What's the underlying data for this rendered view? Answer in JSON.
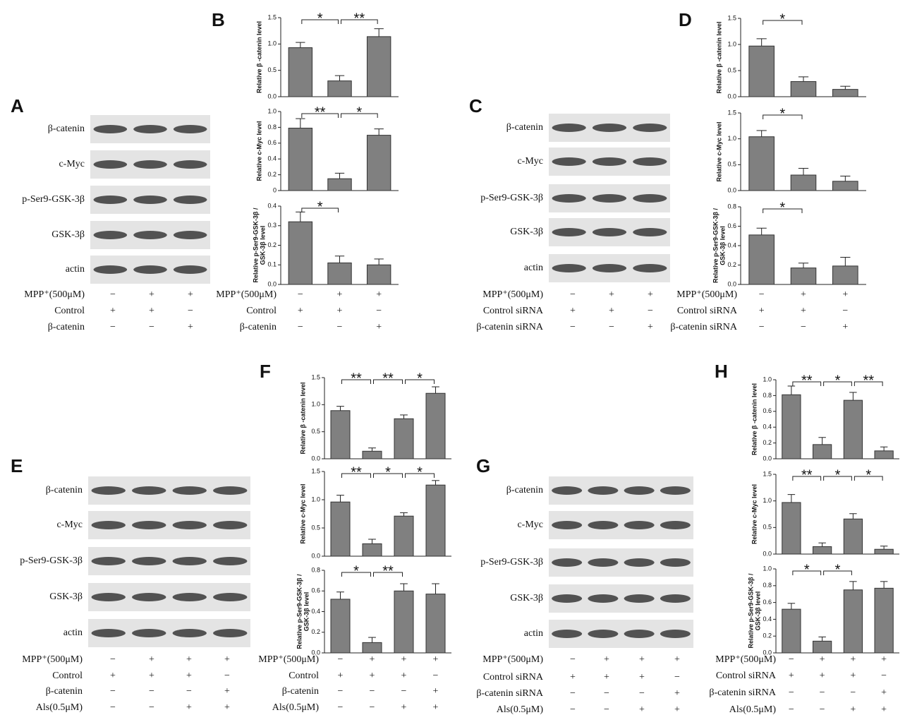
{
  "panels": [
    {
      "letter": "A",
      "blot_labels": [
        "β-catenin",
        "c-Myc",
        "p-Ser9-GSK-3β",
        "GSK-3β",
        "actin"
      ],
      "treatments": [
        {
          "label": "MPP⁺(500μM)",
          "signs": [
            "−",
            "+",
            "+"
          ]
        },
        {
          "label": "Control",
          "signs": [
            "+",
            "+",
            "−"
          ]
        },
        {
          "label": "β-catenin",
          "signs": [
            "−",
            "−",
            "+"
          ]
        }
      ]
    },
    {
      "letter": "B",
      "treatments": [
        {
          "label": "MPP⁺(500μM)",
          "signs": [
            "−",
            "+",
            "+"
          ]
        },
        {
          "label": "Control",
          "signs": [
            "+",
            "+",
            "−"
          ]
        },
        {
          "label": "β-catenin",
          "signs": [
            "−",
            "−",
            "+"
          ]
        }
      ]
    },
    {
      "letter": "C",
      "blot_labels": [
        "β-catenin",
        "c-Myc",
        "p-Ser9-GSK-3β",
        "GSK-3β",
        "actin"
      ],
      "treatments": [
        {
          "label": "MPP⁺(500μM)",
          "signs": [
            "−",
            "+",
            "+"
          ]
        },
        {
          "label": "Control siRNA",
          "signs": [
            "+",
            "+",
            "−"
          ]
        },
        {
          "label": "β-catenin siRNA",
          "signs": [
            "−",
            "−",
            "+"
          ]
        }
      ]
    },
    {
      "letter": "D",
      "treatments": [
        {
          "label": "MPP⁺(500μM)",
          "signs": [
            "−",
            "+",
            "+"
          ]
        },
        {
          "label": "Control siRNA",
          "signs": [
            "+",
            "+",
            "−"
          ]
        },
        {
          "label": "β-catenin siRNA",
          "signs": [
            "−",
            "−",
            "+"
          ]
        }
      ]
    },
    {
      "letter": "E",
      "blot_labels": [
        "β-catenin",
        "c-Myc",
        "p-Ser9-GSK-3β",
        "GSK-3β",
        "actin"
      ],
      "treatments": [
        {
          "label": "MPP⁺(500μM)",
          "signs": [
            "−",
            "+",
            "+",
            "+"
          ]
        },
        {
          "label": "Control",
          "signs": [
            "+",
            "+",
            "+",
            "−"
          ]
        },
        {
          "label": "β-catenin",
          "signs": [
            "−",
            "−",
            "−",
            "+"
          ]
        },
        {
          "label": "Als(0.5μM)",
          "signs": [
            "−",
            "−",
            "+",
            "+"
          ]
        }
      ]
    },
    {
      "letter": "F",
      "treatments": [
        {
          "label": "MPP⁺(500μM)",
          "signs": [
            "−",
            "+",
            "+",
            "+"
          ]
        },
        {
          "label": "Control",
          "signs": [
            "+",
            "+",
            "+",
            "−"
          ]
        },
        {
          "label": "β-catenin",
          "signs": [
            "−",
            "−",
            "−",
            "+"
          ]
        },
        {
          "label": "Als(0.5μM)",
          "signs": [
            "−",
            "−",
            "+",
            "+"
          ]
        }
      ]
    },
    {
      "letter": "G",
      "blot_labels": [
        "β-catenin",
        "c-Myc",
        "p-Ser9-GSK-3β",
        "GSK-3β",
        "actin"
      ],
      "treatments": [
        {
          "label": "MPP⁺(500μM)",
          "signs": [
            "−",
            "+",
            "+",
            "+"
          ]
        },
        {
          "label": "Control siRNA",
          "signs": [
            "+",
            "+",
            "+",
            "−"
          ]
        },
        {
          "label": "β-catenin siRNA",
          "signs": [
            "−",
            "−",
            "−",
            "+"
          ]
        },
        {
          "label": "Als(0.5μM)",
          "signs": [
            "−",
            "−",
            "+",
            "+"
          ]
        }
      ]
    },
    {
      "letter": "H",
      "treatments": [
        {
          "label": "MPP⁺(500μM)",
          "signs": [
            "−",
            "+",
            "+",
            "+"
          ]
        },
        {
          "label": "Control siRNA",
          "signs": [
            "+",
            "+",
            "+",
            "−"
          ]
        },
        {
          "label": "β-catenin siRNA",
          "signs": [
            "−",
            "−",
            "−",
            "+"
          ]
        },
        {
          "label": "Als(0.5μM)",
          "signs": [
            "−",
            "−",
            "+",
            "+"
          ]
        }
      ]
    }
  ],
  "chart_data": [
    {
      "type": "bar",
      "ylabel": [
        "Relative β -catenin level"
      ],
      "values": [
        0.93,
        0.3,
        1.14
      ],
      "errors": [
        0.1,
        0.1,
        0.15
      ],
      "color": "#808080",
      "ylim": [
        0,
        1.5
      ],
      "yticks": [
        {
          "value": 0,
          "label": "0.0"
        },
        0.5,
        {
          "value": 1,
          "label": "1.0"
        },
        1.5
      ],
      "annotations": [
        "*",
        "**"
      ]
    },
    {
      "type": "bar",
      "ylabel": [
        "Relative c-Myc level"
      ],
      "values": [
        0.79,
        0.15,
        0.7
      ],
      "errors": [
        0.12,
        0.07,
        0.08
      ],
      "color": "#808080",
      "ylim": [
        0,
        1.0
      ],
      "yticks": [
        0,
        0.2,
        0.4,
        0.6,
        0.8,
        {
          "value": 1,
          "label": "1.0"
        }
      ],
      "annotations": [
        "**",
        "*"
      ]
    },
    {
      "type": "bar",
      "ylabel": [
        "Relative p-Ser9-GSK-3β /",
        "GSK-3β level"
      ],
      "values": [
        0.32,
        0.11,
        0.1
      ],
      "errors": [
        0.05,
        0.035,
        0.03
      ],
      "color": "#808080",
      "ylim": [
        0,
        0.4
      ],
      "yticks": [
        {
          "value": 0,
          "label": "0.0"
        },
        0.1,
        0.2,
        0.3,
        0.4
      ],
      "annotations": [
        "*",
        null
      ]
    },
    {
      "type": "bar",
      "ylabel": [
        "Relative β -catenin level"
      ],
      "values": [
        0.97,
        0.29,
        0.14
      ],
      "errors": [
        0.14,
        0.09,
        0.06
      ],
      "color": "#808080",
      "ylim": [
        0,
        1.5
      ],
      "yticks": [
        {
          "value": 0,
          "label": "0.0"
        },
        0.5,
        {
          "value": 1,
          "label": "1.0"
        },
        1.5
      ],
      "annotations": [
        "*",
        null
      ]
    },
    {
      "type": "bar",
      "ylabel": [
        "Relative c-Myc level"
      ],
      "values": [
        1.04,
        0.3,
        0.18
      ],
      "errors": [
        0.12,
        0.13,
        0.1
      ],
      "color": "#808080",
      "ylim": [
        0,
        1.5
      ],
      "yticks": [
        {
          "value": 0,
          "label": "0.0"
        },
        0.5,
        {
          "value": 1,
          "label": "1.0"
        },
        1.5
      ],
      "annotations": [
        "*",
        null
      ]
    },
    {
      "type": "bar",
      "ylabel": [
        "Relative p-Ser9-GSK-3β /",
        "GSK-3β level"
      ],
      "values": [
        0.51,
        0.17,
        0.19
      ],
      "errors": [
        0.07,
        0.05,
        0.09
      ],
      "color": "#808080",
      "ylim": [
        0,
        0.8
      ],
      "yticks": [
        {
          "value": 0,
          "label": "0.0"
        },
        0.2,
        0.4,
        0.6,
        0.8
      ],
      "annotations": [
        "*",
        null
      ]
    },
    {
      "type": "bar",
      "ylabel": [
        "Relative β -catenin level"
      ],
      "values": [
        0.89,
        0.14,
        0.74,
        1.21
      ],
      "errors": [
        0.08,
        0.06,
        0.07,
        0.12
      ],
      "color": "#808080",
      "ylim": [
        0,
        1.5
      ],
      "yticks": [
        {
          "value": 0,
          "label": "0.0"
        },
        0.5,
        {
          "value": 1,
          "label": "1.0"
        },
        1.5
      ],
      "annotations": [
        "**",
        "**",
        "*"
      ]
    },
    {
      "type": "bar",
      "ylabel": [
        "Relative c-Myc level"
      ],
      "values": [
        0.96,
        0.22,
        0.71,
        1.26
      ],
      "errors": [
        0.12,
        0.08,
        0.06,
        0.08
      ],
      "color": "#808080",
      "ylim": [
        0,
        1.5
      ],
      "yticks": [
        {
          "value": 0,
          "label": "0.0"
        },
        0.5,
        {
          "value": 1,
          "label": "1.0"
        },
        1.5
      ],
      "annotations": [
        "**",
        "*",
        "*"
      ]
    },
    {
      "type": "bar",
      "ylabel": [
        "Relative p-Ser9-GSK-3β /",
        "GSK-3β level"
      ],
      "values": [
        0.52,
        0.1,
        0.6,
        0.57
      ],
      "errors": [
        0.07,
        0.05,
        0.07,
        0.1
      ],
      "color": "#808080",
      "ylim": [
        0,
        0.8
      ],
      "yticks": [
        {
          "value": 0,
          "label": "0.0"
        },
        0.2,
        0.4,
        0.6,
        0.8
      ],
      "annotations": [
        "*",
        "**",
        null
      ]
    },
    {
      "type": "bar",
      "ylabel": [
        "Relative β -catenin level"
      ],
      "values": [
        0.81,
        0.18,
        0.74,
        0.1
      ],
      "errors": [
        0.11,
        0.09,
        0.1,
        0.05
      ],
      "color": "#808080",
      "ylim": [
        0,
        1.0
      ],
      "yticks": [
        {
          "value": 0,
          "label": "0.0"
        },
        0.2,
        0.4,
        0.6,
        0.8,
        {
          "value": 1,
          "label": "1.0"
        }
      ],
      "annotations": [
        "**",
        "*",
        "**"
      ]
    },
    {
      "type": "bar",
      "ylabel": [
        "Relative c-Myc level"
      ],
      "values": [
        0.97,
        0.14,
        0.66,
        0.09
      ],
      "errors": [
        0.15,
        0.07,
        0.1,
        0.06
      ],
      "color": "#808080",
      "ylim": [
        0,
        1.5
      ],
      "yticks": [
        {
          "value": 0,
          "label": "0.0"
        },
        0.5,
        {
          "value": 1,
          "label": "1.0"
        },
        1.5
      ],
      "annotations": [
        "**",
        "*",
        "*"
      ]
    },
    {
      "type": "bar",
      "ylabel": [
        "Relative p-Ser9-GSK-3β /",
        "GSK-3β level"
      ],
      "values": [
        0.52,
        0.14,
        0.75,
        0.77
      ],
      "errors": [
        0.07,
        0.05,
        0.1,
        0.08
      ],
      "color": "#808080",
      "ylim": [
        0,
        1.0
      ],
      "yticks": [
        {
          "value": 0,
          "label": "0.0"
        },
        0.2,
        0.4,
        0.6,
        0.8,
        {
          "value": 1,
          "label": "1.0"
        }
      ],
      "annotations": [
        "*",
        "*",
        null
      ]
    }
  ]
}
